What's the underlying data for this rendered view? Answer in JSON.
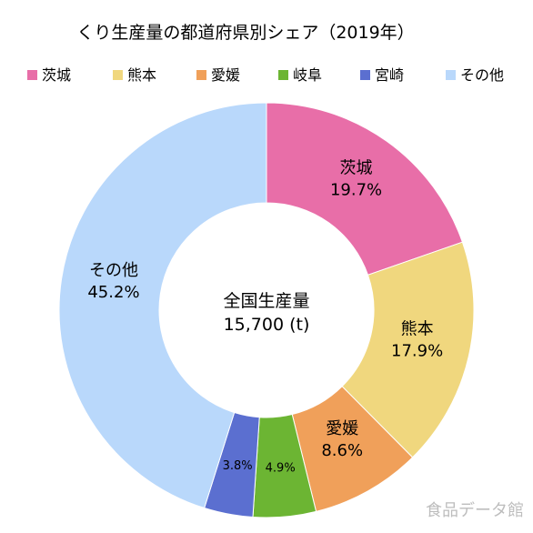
{
  "chart_data": {
    "type": "pie",
    "title": "くり生産量の都道府県別シェア（2019年）",
    "center_label": {
      "line1": "全国生産量",
      "line2": "15,700 (t)"
    },
    "legend_position": "top",
    "slices": [
      {
        "label": "茨城",
        "value": 19.7,
        "value_text": "19.7%",
        "color": "#e86ea8"
      },
      {
        "label": "熊本",
        "value": 17.9,
        "value_text": "17.9%",
        "color": "#f0d77e"
      },
      {
        "label": "愛媛",
        "value": 8.6,
        "value_text": "8.6%",
        "color": "#f0a05a"
      },
      {
        "label": "岐阜",
        "value": 4.9,
        "value_text": "4.9%",
        "color": "#6cb533"
      },
      {
        "label": "宮崎",
        "value": 3.8,
        "value_text": "3.8%",
        "color": "#5b6fd0"
      },
      {
        "label": "その他",
        "value": 45.2,
        "value_text": "45.2%",
        "color": "#b9d8fb"
      }
    ]
  },
  "watermark": "食品データ館"
}
